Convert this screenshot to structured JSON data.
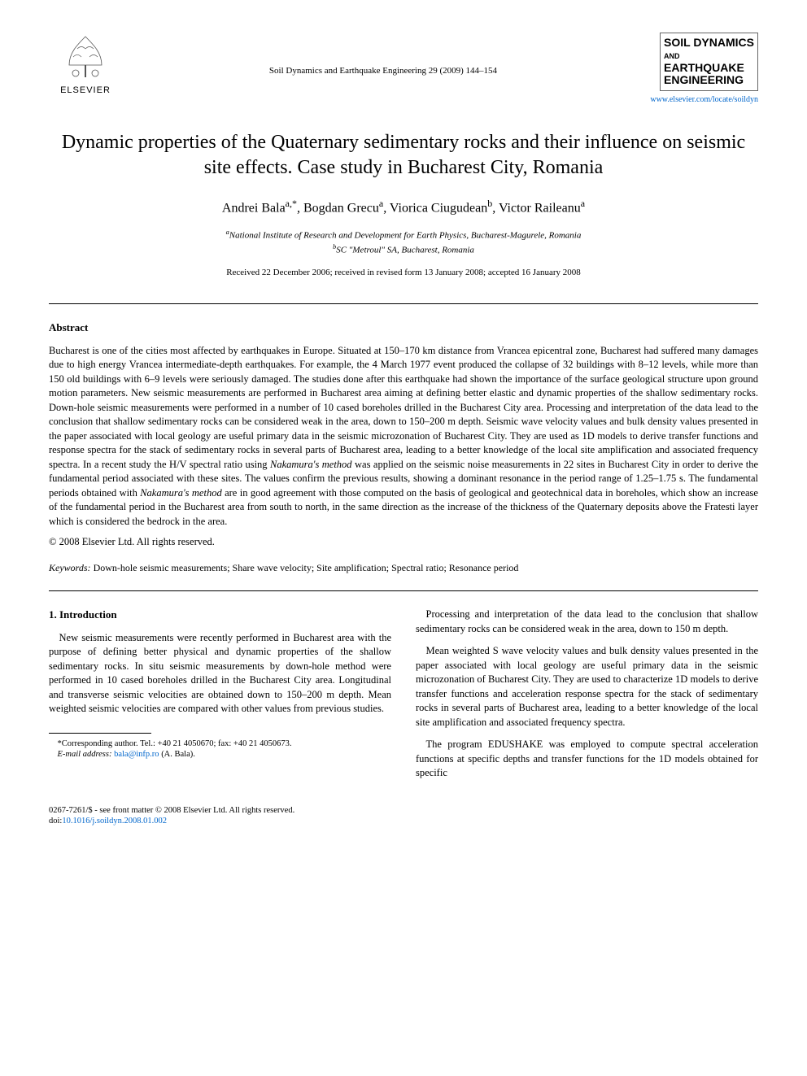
{
  "header": {
    "publisher_name": "ELSEVIER",
    "journal_reference": "Soil Dynamics and Earthquake Engineering 29 (2009) 144–154",
    "journal_cover_line1": "SOIL DYNAMICS",
    "journal_cover_line2": "AND",
    "journal_cover_line3": "EARTHQUAKE",
    "journal_cover_line4": "ENGINEERING",
    "journal_url": "www.elsevier.com/locate/soildyn"
  },
  "article": {
    "title": "Dynamic properties of the Quaternary sedimentary rocks and their influence on seismic site effects. Case study in Bucharest City, Romania",
    "authors_html": "Andrei Bala<sup>a,*</sup>, Bogdan Grecu<sup>a</sup>, Viorica Ciugudean<sup>b</sup>, Victor Raileanu<sup>a</sup>",
    "affiliation_a": "National Institute of Research and Development for Earth Physics, Bucharest-Magurele, Romania",
    "affiliation_b": "SC \"Metroul\" SA, Bucharest, Romania",
    "dates": "Received 22 December 2006; received in revised form 13 January 2008; accepted 16 January 2008"
  },
  "abstract": {
    "header": "Abstract",
    "body": "Bucharest is one of the cities most affected by earthquakes in Europe. Situated at 150–170 km distance from Vrancea epicentral zone, Bucharest had suffered many damages due to high energy Vrancea intermediate-depth earthquakes. For example, the 4 March 1977 event produced the collapse of 32 buildings with 8–12 levels, while more than 150 old buildings with 6–9 levels were seriously damaged. The studies done after this earthquake had shown the importance of the surface geological structure upon ground motion parameters. New seismic measurements are performed in Bucharest area aiming at defining better elastic and dynamic properties of the shallow sedimentary rocks. Down-hole seismic measurements were performed in a number of 10 cased boreholes drilled in the Bucharest City area. Processing and interpretation of the data lead to the conclusion that shallow sedimentary rocks can be considered weak in the area, down to 150–200 m depth. Seismic wave velocity values and bulk density values presented in the paper associated with local geology are useful primary data in the seismic microzonation of Bucharest City. They are used as 1D models to derive transfer functions and response spectra for the stack of sedimentary rocks in several parts of Bucharest area, leading to a better knowledge of the local site amplification and associated frequency spectra. In a recent study the H/V spectral ratio using Nakamura's method was applied on the seismic noise measurements in 22 sites in Bucharest City in order to derive the fundamental period associated with these sites. The values confirm the previous results, showing a dominant resonance in the period range of 1.25–1.75 s. The fundamental periods obtained with Nakamura's method are in good agreement with those computed on the basis of geological and geotechnical data in boreholes, which show an increase of the fundamental period in the Bucharest area from south to north, in the same direction as the increase of the thickness of the Quaternary deposits above the Fratesti layer which is considered the bedrock in the area.",
    "copyright": "© 2008 Elsevier Ltd. All rights reserved.",
    "keywords_label": "Keywords:",
    "keywords": "Down-hole seismic measurements; Share wave velocity; Site amplification; Spectral ratio; Resonance period"
  },
  "body": {
    "section1_header": "1. Introduction",
    "col1_p1": "New seismic measurements were recently performed in Bucharest area with the purpose of defining better physical and dynamic properties of the shallow sedimentary rocks. In situ seismic measurements by down-hole method were performed in 10 cased boreholes drilled in the Bucharest City area. Longitudinal and transverse seismic velocities are obtained down to 150–200 m depth. Mean weighted seismic velocities are compared with other values from previous studies.",
    "col2_p1": "Processing and interpretation of the data lead to the conclusion that shallow sedimentary rocks can be considered weak in the area, down to 150 m depth.",
    "col2_p2": "Mean weighted S wave velocity values and bulk density values presented in the paper associated with local geology are useful primary data in the seismic microzonation of Bucharest City. They are used to characterize 1D models to derive transfer functions and acceleration response spectra for the stack of sedimentary rocks in several parts of Bucharest area, leading to a better knowledge of the local site amplification and associated frequency spectra.",
    "col2_p3": "The program EDUSHAKE was employed to compute spectral acceleration functions at specific depths and transfer functions for the 1D models obtained for specific"
  },
  "footnote": {
    "corresponding": "*Corresponding author. Tel.: +40 21 4050670; fax: +40 21 4050673.",
    "email_label": "E-mail address:",
    "email": "bala@infp.ro",
    "email_author": "(A. Bala)."
  },
  "footer": {
    "front_matter": "0267-7261/$ - see front matter © 2008 Elsevier Ltd. All rights reserved.",
    "doi_label": "doi:",
    "doi": "10.1016/j.soildyn.2008.01.002"
  },
  "colors": {
    "text": "#000000",
    "link": "#0066cc",
    "background": "#ffffff",
    "rule": "#000000"
  },
  "typography": {
    "body_font": "Georgia, Times New Roman, serif",
    "title_fontsize": 24,
    "body_fontsize": 12.5,
    "small_fontsize": 10.5
  }
}
